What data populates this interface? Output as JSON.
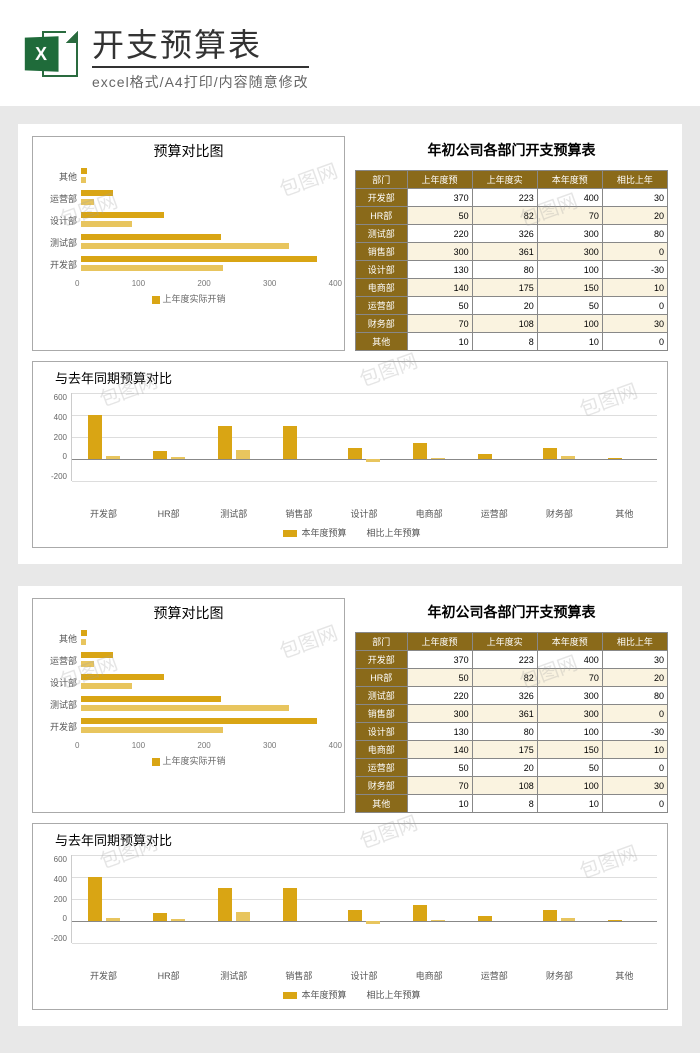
{
  "header": {
    "main_title": "开支预算表",
    "sub_title": "excel格式/A4打印/内容随意修改",
    "icon_letter": "X"
  },
  "colors": {
    "bar_primary": "#d9a514",
    "bar_secondary": "#e8c55e",
    "header_row_bg": "#8a6a1a",
    "header_row_fg": "#ffffff",
    "lt_yellow": "#faf3e0"
  },
  "hbar": {
    "title": "预算对比图",
    "legend": "上年度实际开销",
    "xmax": 400,
    "xticks": [
      "0",
      "100",
      "200",
      "300",
      "400"
    ],
    "rows": [
      {
        "label": "其他",
        "a": 10,
        "b": 8
      },
      {
        "label": "运营部",
        "a": 50,
        "b": 20
      },
      {
        "label": "设计部",
        "a": 130,
        "b": 80
      },
      {
        "label": "测试部",
        "a": 220,
        "b": 326
      },
      {
        "label": "开发部",
        "a": 370,
        "b": 223
      }
    ]
  },
  "table": {
    "title": "年初公司各部门开支预算表",
    "columns": [
      "部门",
      "上年度预",
      "上年度实",
      "本年度预",
      "相比上年"
    ],
    "rows": [
      [
        "开发部",
        "370",
        "223",
        "400",
        "30"
      ],
      [
        "HR部",
        "50",
        "82",
        "70",
        "20"
      ],
      [
        "测试部",
        "220",
        "326",
        "300",
        "80"
      ],
      [
        "销售部",
        "300",
        "361",
        "300",
        "0"
      ],
      [
        "设计部",
        "130",
        "80",
        "100",
        "-30"
      ],
      [
        "电商部",
        "140",
        "175",
        "150",
        "10"
      ],
      [
        "运营部",
        "50",
        "20",
        "50",
        "0"
      ],
      [
        "财务部",
        "70",
        "108",
        "100",
        "30"
      ],
      [
        "其他",
        "10",
        "8",
        "10",
        "0"
      ]
    ]
  },
  "colchart": {
    "title": "与去年同期预算对比",
    "ymin": -200,
    "ymax": 600,
    "yticks": [
      "600",
      "400",
      "200",
      "0",
      "-200"
    ],
    "legend1": "本年度预算",
    "legend2": "相比上年预算",
    "cats": [
      "开发部",
      "HR部",
      "测试部",
      "销售部",
      "设计部",
      "电商部",
      "运营部",
      "财务部",
      "其他"
    ],
    "v1": [
      400,
      70,
      300,
      300,
      100,
      150,
      50,
      100,
      10
    ],
    "v2": [
      30,
      20,
      80,
      0,
      -30,
      10,
      0,
      30,
      0
    ]
  },
  "watermark": "包图网"
}
